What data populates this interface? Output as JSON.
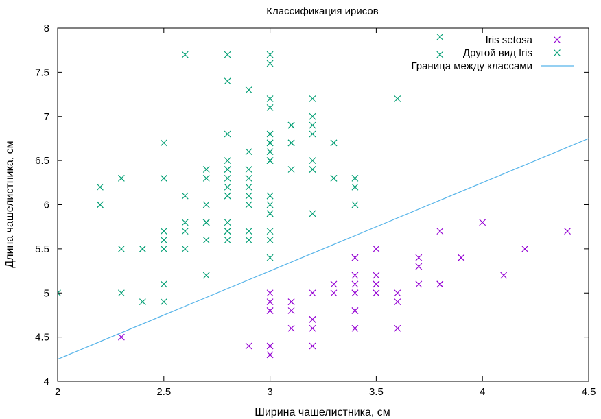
{
  "chart_data": {
    "type": "scatter",
    "title": "Классификация ирисов",
    "xlabel": "Ширина чашелистника, см",
    "ylabel": "Длина чашелистника, см",
    "xlim": [
      2,
      4.5
    ],
    "ylim": [
      4,
      8
    ],
    "x_ticks": [
      "2",
      "2.5",
      "3",
      "3.5",
      "4",
      "4.5"
    ],
    "y_ticks": [
      "4",
      "4.5",
      "5",
      "5.5",
      "6",
      "6.5",
      "7",
      "7.5",
      "8"
    ],
    "grid": false,
    "legend_position": "top-right",
    "series": [
      {
        "name": "Iris setosa",
        "marker": "x",
        "color": "#9400d3",
        "points": [
          [
            3.5,
            5.1
          ],
          [
            3.0,
            4.9
          ],
          [
            3.2,
            4.7
          ],
          [
            3.1,
            4.6
          ],
          [
            3.6,
            5.0
          ],
          [
            3.9,
            5.4
          ],
          [
            3.4,
            4.6
          ],
          [
            3.4,
            5.0
          ],
          [
            2.9,
            4.4
          ],
          [
            3.1,
            4.9
          ],
          [
            3.7,
            5.4
          ],
          [
            3.4,
            4.8
          ],
          [
            3.0,
            4.8
          ],
          [
            3.0,
            4.3
          ],
          [
            4.0,
            5.8
          ],
          [
            4.4,
            5.7
          ],
          [
            3.9,
            5.4
          ],
          [
            3.5,
            5.1
          ],
          [
            3.8,
            5.7
          ],
          [
            3.8,
            5.1
          ],
          [
            3.4,
            5.4
          ],
          [
            3.7,
            5.1
          ],
          [
            3.6,
            4.6
          ],
          [
            3.3,
            5.1
          ],
          [
            3.4,
            4.8
          ],
          [
            3.0,
            5.0
          ],
          [
            3.4,
            5.0
          ],
          [
            3.5,
            5.2
          ],
          [
            3.4,
            5.2
          ],
          [
            3.2,
            4.7
          ],
          [
            3.1,
            4.8
          ],
          [
            3.4,
            5.4
          ],
          [
            4.1,
            5.2
          ],
          [
            4.2,
            5.5
          ],
          [
            3.1,
            4.9
          ],
          [
            3.2,
            5.0
          ],
          [
            3.5,
            5.5
          ],
          [
            3.6,
            4.9
          ],
          [
            3.0,
            4.4
          ],
          [
            3.4,
            5.1
          ],
          [
            3.5,
            5.0
          ],
          [
            2.3,
            4.5
          ],
          [
            3.2,
            4.4
          ],
          [
            3.5,
            5.0
          ],
          [
            3.8,
            5.1
          ],
          [
            3.0,
            4.8
          ],
          [
            3.8,
            5.1
          ],
          [
            3.2,
            4.6
          ],
          [
            3.7,
            5.3
          ],
          [
            3.3,
            5.0
          ]
        ]
      },
      {
        "name": "Другой вид Iris",
        "marker": "x",
        "color": "#009e73",
        "points": [
          [
            3.2,
            7.0
          ],
          [
            3.2,
            6.4
          ],
          [
            3.1,
            6.9
          ],
          [
            2.3,
            5.5
          ],
          [
            2.8,
            6.5
          ],
          [
            2.8,
            5.7
          ],
          [
            3.3,
            6.3
          ],
          [
            2.4,
            4.9
          ],
          [
            2.9,
            6.6
          ],
          [
            2.7,
            5.2
          ],
          [
            2.0,
            5.0
          ],
          [
            3.0,
            5.9
          ],
          [
            2.2,
            6.0
          ],
          [
            2.9,
            6.1
          ],
          [
            2.9,
            5.6
          ],
          [
            3.1,
            6.7
          ],
          [
            3.0,
            5.6
          ],
          [
            2.7,
            5.8
          ],
          [
            2.2,
            6.2
          ],
          [
            2.5,
            5.6
          ],
          [
            3.2,
            5.9
          ],
          [
            2.8,
            6.1
          ],
          [
            2.5,
            6.3
          ],
          [
            2.8,
            6.1
          ],
          [
            2.9,
            6.4
          ],
          [
            3.0,
            6.6
          ],
          [
            2.8,
            6.8
          ],
          [
            3.0,
            6.7
          ],
          [
            2.9,
            6.0
          ],
          [
            2.6,
            5.7
          ],
          [
            2.4,
            5.5
          ],
          [
            2.4,
            5.5
          ],
          [
            2.7,
            5.8
          ],
          [
            2.7,
            6.0
          ],
          [
            3.0,
            5.4
          ],
          [
            3.4,
            6.0
          ],
          [
            3.1,
            6.7
          ],
          [
            2.3,
            6.3
          ],
          [
            3.0,
            5.6
          ],
          [
            2.5,
            5.5
          ],
          [
            2.6,
            5.5
          ],
          [
            3.0,
            6.1
          ],
          [
            2.6,
            5.8
          ],
          [
            2.3,
            5.0
          ],
          [
            2.7,
            5.6
          ],
          [
            3.0,
            5.7
          ],
          [
            2.9,
            5.7
          ],
          [
            2.9,
            6.2
          ],
          [
            2.5,
            5.1
          ],
          [
            2.8,
            5.7
          ],
          [
            3.3,
            6.3
          ],
          [
            2.7,
            5.8
          ],
          [
            3.0,
            7.1
          ],
          [
            2.9,
            6.3
          ],
          [
            3.0,
            6.5
          ],
          [
            3.0,
            7.6
          ],
          [
            2.5,
            4.9
          ],
          [
            2.9,
            7.3
          ],
          [
            2.5,
            6.7
          ],
          [
            3.6,
            7.2
          ],
          [
            3.2,
            6.5
          ],
          [
            2.7,
            6.4
          ],
          [
            3.0,
            6.8
          ],
          [
            2.5,
            5.7
          ],
          [
            2.8,
            5.8
          ],
          [
            3.2,
            6.4
          ],
          [
            3.0,
            6.5
          ],
          [
            3.8,
            7.7
          ],
          [
            2.6,
            7.7
          ],
          [
            2.2,
            6.0
          ],
          [
            3.2,
            6.9
          ],
          [
            2.8,
            5.6
          ],
          [
            2.8,
            7.7
          ],
          [
            2.7,
            6.3
          ],
          [
            3.3,
            6.7
          ],
          [
            3.2,
            7.2
          ],
          [
            2.8,
            6.2
          ],
          [
            3.0,
            6.1
          ],
          [
            2.8,
            6.4
          ],
          [
            3.0,
            7.2
          ],
          [
            2.8,
            7.4
          ],
          [
            3.8,
            7.9
          ],
          [
            2.8,
            6.4
          ],
          [
            2.8,
            6.3
          ],
          [
            2.6,
            6.1
          ],
          [
            3.0,
            7.7
          ],
          [
            3.4,
            6.3
          ],
          [
            3.1,
            6.4
          ],
          [
            3.0,
            6.0
          ],
          [
            3.1,
            6.9
          ],
          [
            3.1,
            6.7
          ],
          [
            3.1,
            6.9
          ],
          [
            2.7,
            5.8
          ],
          [
            3.2,
            6.8
          ],
          [
            3.3,
            6.7
          ],
          [
            3.0,
            6.7
          ],
          [
            2.5,
            6.3
          ],
          [
            3.0,
            6.5
          ],
          [
            3.4,
            6.2
          ],
          [
            3.0,
            5.9
          ]
        ]
      },
      {
        "name": "Граница между классами",
        "type": "line",
        "color": "#56b4e9",
        "points": [
          [
            2.0,
            4.25
          ],
          [
            4.5,
            6.75
          ]
        ]
      }
    ]
  }
}
